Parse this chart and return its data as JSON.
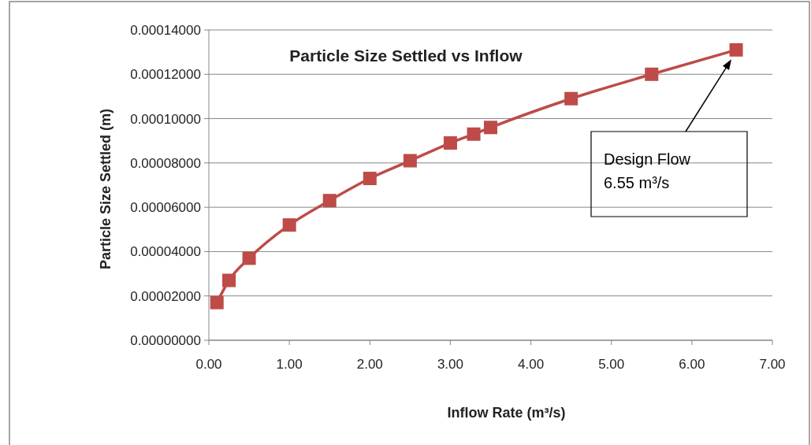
{
  "chart_data": {
    "type": "line",
    "title": "Particle Size Settled vs Inflow",
    "xlabel": "Inflow Rate (m³/s)",
    "ylabel": "Particle Size Settled (m)",
    "x": [
      0.1,
      0.25,
      0.5,
      1.0,
      1.5,
      2.0,
      2.5,
      3.0,
      3.29,
      3.5,
      4.5,
      5.5,
      6.55
    ],
    "series": [
      {
        "color": "#be4b48",
        "values": [
          1.7e-05,
          2.7e-05,
          3.7e-05,
          5.2e-05,
          6.3e-05,
          7.3e-05,
          8.1e-05,
          8.9e-05,
          9.3e-05,
          9.6e-05,
          0.000109,
          0.00012,
          0.000131
        ]
      }
    ],
    "xlim": [
      0,
      7
    ],
    "ylim": [
      0,
      0.00014
    ],
    "xticks": [
      {
        "value": 0,
        "label": "0.00"
      },
      {
        "value": 1,
        "label": "1.00"
      },
      {
        "value": 2,
        "label": "2.00"
      },
      {
        "value": 3,
        "label": "3.00"
      },
      {
        "value": 4,
        "label": "4.00"
      },
      {
        "value": 5,
        "label": "5.00"
      },
      {
        "value": 6,
        "label": "6.00"
      },
      {
        "value": 7,
        "label": "7.00"
      }
    ],
    "yticks": [
      {
        "value": 0,
        "label": "0.00000000"
      },
      {
        "value": 2e-05,
        "label": "0.00002000"
      },
      {
        "value": 4e-05,
        "label": "0.00004000"
      },
      {
        "value": 6e-05,
        "label": "0.00006000"
      },
      {
        "value": 8e-05,
        "label": "0.00008000"
      },
      {
        "value": 0.0001,
        "label": "0.00010000"
      },
      {
        "value": 0.00012,
        "label": "0.00012000"
      },
      {
        "value": 0.00014,
        "label": "0.00014000"
      }
    ],
    "grid": "y",
    "marker": "square",
    "line_style": "solid",
    "annotations": [
      "Design Flow\n6.55 m³/s"
    ]
  }
}
